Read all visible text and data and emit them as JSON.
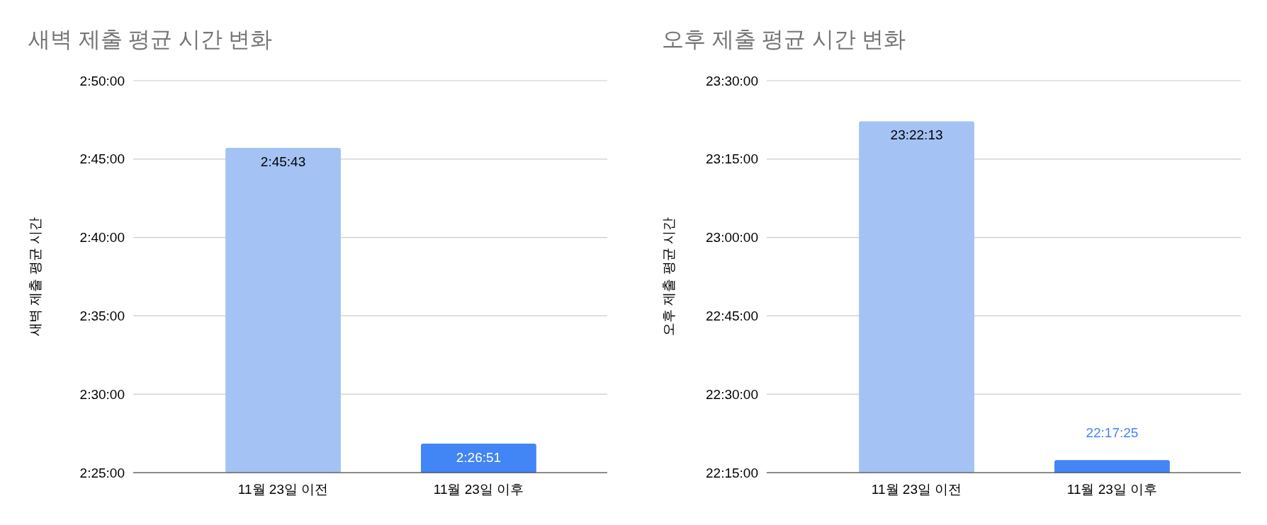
{
  "chart_data": [
    {
      "type": "bar",
      "title": "새벽 제출 평균 시간 변화",
      "ylabel": "새벽 제출 평균 시간",
      "categories": [
        "11월 23일 이전",
        "11월 23일 이후"
      ],
      "values": [
        2.761944,
        2.4475
      ],
      "colors": [
        "#a4c2f4",
        "#4285f4"
      ],
      "value_labels": [
        "2:45:43",
        "2:26:51"
      ],
      "ylim": [
        2.416667,
        2.833333
      ],
      "yticks": [
        {
          "value": 2.416667,
          "label": "2:25:00"
        },
        {
          "value": 2.5,
          "label": "2:30:00"
        },
        {
          "value": 2.583333,
          "label": "2:35:00"
        },
        {
          "value": 2.666667,
          "label": "2:40:00"
        },
        {
          "value": 2.75,
          "label": "2:45:00"
        },
        {
          "value": 2.833333,
          "label": "2:50:00"
        }
      ],
      "grid": "y"
    },
    {
      "type": "bar",
      "title": "오후 제출 평균 시간 변화",
      "ylabel": "오후 제출 평균 시간",
      "categories": [
        "11월 23일 이전",
        "11월 23일 이후"
      ],
      "values": [
        23.370278,
        22.290278
      ],
      "colors": [
        "#a4c2f4",
        "#4285f4"
      ],
      "value_labels": [
        "23:22:13",
        "22:17:25"
      ],
      "ylim": [
        22.25,
        23.5
      ],
      "yticks": [
        {
          "value": 22.25,
          "label": "22:15:00"
        },
        {
          "value": 22.5,
          "label": "22:30:00"
        },
        {
          "value": 22.75,
          "label": "22:45:00"
        },
        {
          "value": 23,
          "label": "23:00:00"
        },
        {
          "value": 23.25,
          "label": "23:15:00"
        },
        {
          "value": 23.5,
          "label": "23:30:00"
        }
      ],
      "grid": "y"
    }
  ]
}
